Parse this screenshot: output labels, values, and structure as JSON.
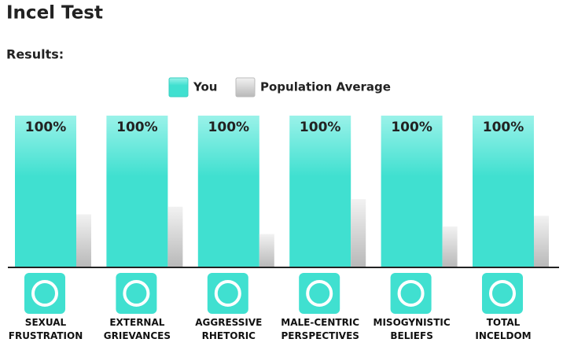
{
  "title": "Incel Test",
  "subtitle": "Results:",
  "chart_data": {
    "type": "bar",
    "categories": [
      "SEXUAL FRUSTRATION",
      "EXTERNAL GRIEVANCES",
      "AGGRESSIVE RHETORIC",
      "MALE-CENTRIC PERSPECTIVES",
      "MISOGYNISTIC BELIEFS",
      "TOTAL INCELDOM"
    ],
    "series": [
      {
        "name": "You",
        "color": "#40e0d0",
        "values": [
          100,
          100,
          100,
          100,
          100,
          100
        ],
        "value_labels": [
          "100%",
          "100%",
          "100%",
          "100%",
          "100%",
          "100%"
        ]
      },
      {
        "name": "Population Average",
        "color": "#c8c8c8",
        "values": [
          35,
          40,
          22,
          45,
          27,
          34
        ]
      }
    ],
    "ylim": [
      0,
      100
    ]
  }
}
